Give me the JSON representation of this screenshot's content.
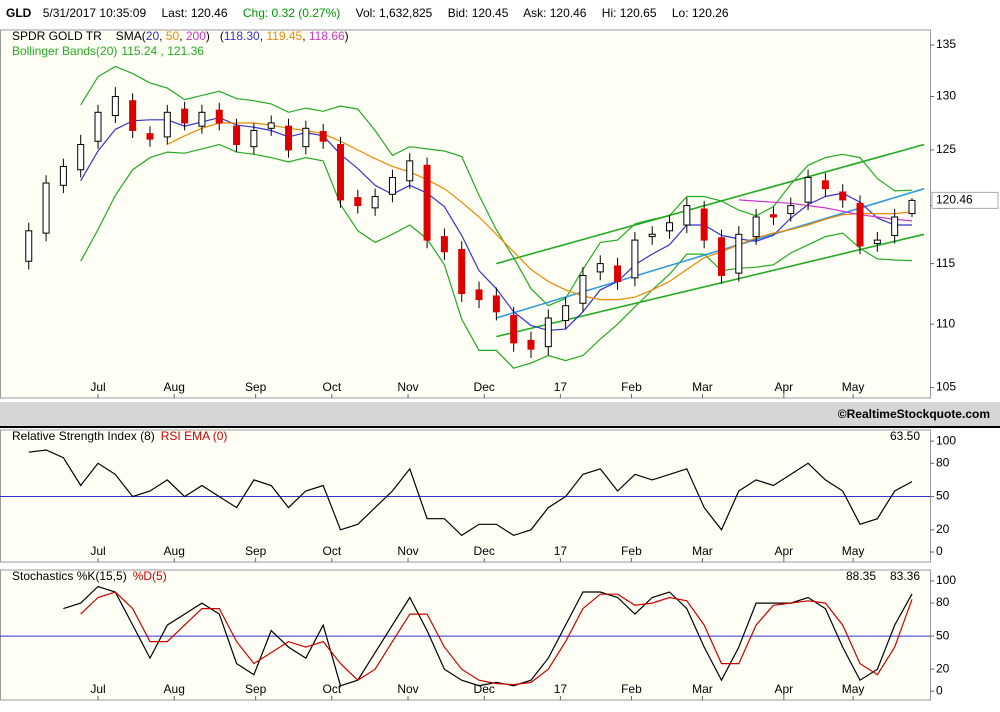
{
  "header": {
    "symbol": "GLD",
    "datetime": "5/31/2017 10:35:09",
    "last": "Last: 120.46",
    "change": "Chg: 0.32 (0.27%)",
    "volume": "Vol: 1,632,825",
    "bid": "Bid: 120.45",
    "ask": "Ask: 120.46",
    "high": "Hi: 120.65",
    "low": "Lo: 120.26"
  },
  "chart_data": [
    {
      "type": "candlestick",
      "name": "SPDR GOLD TR",
      "log": true,
      "ylim": [
        104.2,
        136.5
      ],
      "yticks": [
        105,
        110,
        115,
        120,
        125,
        130,
        135
      ],
      "xlim": [
        -1.66,
        52.04
      ],
      "xticks": [
        {
          "value": 4,
          "label": "Jul"
        },
        {
          "value": 8.4,
          "label": "Aug"
        },
        {
          "value": 13.1,
          "label": "Sep"
        },
        {
          "value": 17.5,
          "label": "Oct"
        },
        {
          "value": 21.9,
          "label": "Nov"
        },
        {
          "value": 26.3,
          "label": "Dec"
        },
        {
          "value": 30.7,
          "label": "17"
        },
        {
          "value": 34.8,
          "label": "Feb"
        },
        {
          "value": 38.9,
          "label": "Mar"
        },
        {
          "value": 43.6,
          "label": "Apr"
        },
        {
          "value": 47.6,
          "label": "May"
        }
      ],
      "up_color": "#ffffff",
      "down_color": "#dd0000",
      "open": [
        115.2,
        117.6,
        121.8,
        123.2,
        125.8,
        128.2,
        129.6,
        126.5,
        126.2,
        128.8,
        127.2,
        128.7,
        127.2,
        125.3,
        127.0,
        127.2,
        125.3,
        126.7,
        125.5,
        120.7,
        119.8,
        121.0,
        122.2,
        123.6,
        117.3,
        116.2,
        112.8,
        112.3,
        110.7,
        108.7,
        108.2,
        110.3,
        111.7,
        114.3,
        114.8,
        113.8,
        117.3,
        117.8,
        118.3,
        119.7,
        117.2,
        114.2,
        117.3,
        119.2,
        119.3,
        120.3,
        122.2,
        121.2,
        120.2,
        116.7,
        117.4,
        119.3
      ],
      "high": [
        118.5,
        122.7,
        124.2,
        126.4,
        129.2,
        130.9,
        130.3,
        127.2,
        129.2,
        129.5,
        129.2,
        129.4,
        127.9,
        127.5,
        128.2,
        127.9,
        127.7,
        127.4,
        126.2,
        121.4,
        121.5,
        123.2,
        124.7,
        124.3,
        118,
        116.9,
        113.5,
        113,
        111.4,
        109.4,
        111.2,
        112.2,
        114.7,
        115.7,
        115.5,
        117.7,
        118.2,
        119.2,
        120.7,
        120.4,
        117.9,
        118.2,
        119.7,
        119.9,
        120.7,
        123.2,
        122.9,
        121.9,
        120.9,
        117.7,
        119.7,
        120.65
      ],
      "low": [
        114.5,
        116.9,
        121.1,
        122.5,
        125.1,
        127.5,
        126.1,
        125.3,
        125.5,
        126.8,
        126.5,
        126.8,
        124.8,
        124.6,
        126.3,
        124.3,
        124.6,
        125.1,
        119.8,
        119.3,
        119.1,
        120.3,
        121.5,
        116.3,
        115.3,
        111.8,
        111.3,
        110.3,
        107.8,
        107.3,
        107.5,
        109.6,
        111,
        113.6,
        112.8,
        113.1,
        116.6,
        117.1,
        117.6,
        116.3,
        113.3,
        113.5,
        116.6,
        118.3,
        118.6,
        119.6,
        120.8,
        119.8,
        115.8,
        116,
        116.7,
        119.0
      ],
      "close": [
        117.8,
        122.0,
        123.5,
        125.5,
        128.5,
        130.0,
        126.8,
        126.0,
        128.5,
        127.5,
        128.5,
        127.5,
        125.5,
        126.8,
        127.5,
        125.0,
        127.0,
        125.8,
        120.5,
        120.0,
        120.8,
        122.5,
        124.0,
        117.0,
        116.0,
        112.5,
        112.0,
        111.0,
        108.5,
        108.0,
        110.5,
        111.5,
        114.0,
        115.0,
        113.5,
        117.0,
        117.5,
        118.5,
        120.0,
        117.0,
        114.0,
        117.5,
        119.0,
        119.0,
        120.0,
        122.5,
        121.5,
        120.5,
        116.5,
        117.0,
        119.0,
        120.46
      ],
      "last_price": 120.46,
      "sma_legend": {
        "open": "SMA(",
        "sep": ", ",
        "close": ")",
        "values_open": "(",
        "values_close": ")"
      },
      "overlays": [
        {
          "name": "20",
          "color": "#3333cc",
          "value_label": "118.30",
          "values": [
            null,
            null,
            null,
            122.2,
            124.9,
            126.9,
            127.7,
            127.8,
            127.8,
            127.2,
            127.6,
            128,
            127.3,
            127.1,
            126.8,
            126.2,
            126.6,
            126.3,
            124.6,
            123.3,
            121.8,
            121.0,
            121.8,
            121.1,
            119.9,
            117.4,
            114.4,
            112.9,
            111,
            109.9,
            109.5,
            109.6,
            111,
            112.8,
            113.5,
            114.9,
            115.8,
            116.6,
            118.3,
            118.3,
            117.4,
            117.1,
            116.9,
            117.4,
            118.9,
            120.1,
            120.8,
            121.1,
            120.3,
            118.9,
            118.3,
            118.3
          ]
        },
        {
          "name": "50",
          "color": "#ee8800",
          "value_label": "119.45",
          "values": [
            null,
            null,
            null,
            null,
            null,
            null,
            null,
            null,
            125.5,
            126.3,
            127,
            127.5,
            127.5,
            127.5,
            127.3,
            127,
            126.8,
            126.5,
            125.8,
            125,
            124.2,
            123.5,
            123,
            122.3,
            121.5,
            120.3,
            119,
            117.5,
            116,
            114.5,
            113.5,
            112.8,
            112.3,
            112,
            112,
            112.2,
            112.8,
            113.5,
            114.5,
            115.5,
            116,
            116.6,
            117.2,
            117.6,
            117.9,
            118.3,
            118.8,
            119.2,
            119.3,
            119.3,
            119.3,
            119.45
          ]
        },
        {
          "name": "200",
          "color": "#cc33cc",
          "value_label": "118.66",
          "values": [
            null,
            null,
            null,
            null,
            null,
            null,
            null,
            null,
            null,
            null,
            null,
            null,
            null,
            null,
            null,
            null,
            null,
            null,
            null,
            null,
            null,
            null,
            null,
            null,
            null,
            null,
            null,
            null,
            null,
            null,
            null,
            null,
            null,
            null,
            null,
            null,
            null,
            null,
            null,
            null,
            null,
            120.5,
            120.4,
            120.3,
            120.2,
            120.0,
            119.8,
            119.5,
            119.2,
            119.0,
            118.8,
            118.66
          ]
        }
      ],
      "bollinger": {
        "name": "Bollinger Bands(20)",
        "color": "#22aa22",
        "lower_label": "115.24",
        "sep": " , ",
        "upper_label": "121.36",
        "upper": [
          null,
          null,
          null,
          129.2,
          131.9,
          132.9,
          132.2,
          131.3,
          130.8,
          129.7,
          130.1,
          130.5,
          129.8,
          129.6,
          129.3,
          128.5,
          128.9,
          128.6,
          129.1,
          128.8,
          126.8,
          124.5,
          125.3,
          125.1,
          124.9,
          124.4,
          120.9,
          117.9,
          115.5,
          112.9,
          111.5,
          112.1,
          114.5,
          116.8,
          117,
          118.4,
          118.8,
          119.1,
          120.8,
          120.8,
          120.4,
          119.6,
          119.1,
          119.9,
          121.9,
          123.6,
          124.3,
          124.6,
          124.3,
          122.4,
          121.3,
          121.36
        ],
        "lower": [
          null,
          null,
          null,
          115.2,
          117.9,
          120.9,
          123.2,
          124.3,
          124.8,
          124.7,
          125.1,
          125.5,
          124.8,
          124.6,
          124.3,
          123.9,
          124.3,
          124.0,
          120.1,
          117.8,
          116.8,
          117.5,
          118.3,
          117.1,
          114.9,
          110.4,
          107.9,
          107.9,
          106.5,
          106.9,
          107.5,
          107.1,
          107.5,
          108.8,
          110,
          111.4,
          112.8,
          114.1,
          115.8,
          115.8,
          114.4,
          114.6,
          114.7,
          114.9,
          115.9,
          116.6,
          117.3,
          117.6,
          116.3,
          115.4,
          115.3,
          115.24
        ]
      },
      "trendlines": [
        {
          "color": "#22aa22",
          "x": [
            27,
            51.7
          ],
          "values": [
            115,
            125.5
          ]
        },
        {
          "color": "#22aa22",
          "x": [
            27,
            51.7
          ],
          "values": [
            109,
            117.5
          ]
        },
        {
          "color": "#3399dd",
          "x": [
            27,
            51.7
          ],
          "values": [
            110.5,
            121.5
          ]
        }
      ],
      "watermark": "©RealtimeStockquote.com"
    },
    {
      "type": "line",
      "title": "Relative Strength Index (8)",
      "title2": "RSI EMA (0)",
      "title2_color": "#cc0000",
      "ylim": [
        -9,
        110
      ],
      "yticks": [
        0,
        20,
        50,
        80,
        100
      ],
      "ref_line": {
        "value": 50,
        "color": "#3333cc"
      },
      "series": [
        {
          "color": "#000000",
          "value_label": "63.50",
          "values": [
            90,
            92,
            85,
            60,
            80,
            70,
            50,
            55,
            65,
            50,
            60,
            50,
            40,
            65,
            60,
            40,
            55,
            60,
            20,
            25,
            40,
            55,
            75,
            30,
            30,
            15,
            25,
            25,
            15,
            20,
            40,
            50,
            70,
            75,
            55,
            70,
            65,
            70,
            75,
            40,
            20,
            55,
            65,
            60,
            70,
            80,
            65,
            55,
            25,
            30,
            55,
            63.5
          ]
        }
      ]
    },
    {
      "type": "line",
      "title": "Stochastics %K(15,5)",
      "title2": "%D(5)",
      "title2_color": "#cc0000",
      "ylim": [
        -8,
        110
      ],
      "yticks": [
        0,
        20,
        50,
        80,
        100
      ],
      "ref_line": {
        "value": 50,
        "color": "#3333cc"
      },
      "series": [
        {
          "color": "#000000",
          "value_label": "88.35",
          "values": [
            null,
            null,
            75,
            80,
            95,
            90,
            60,
            30,
            60,
            70,
            80,
            70,
            25,
            15,
            55,
            40,
            30,
            60,
            5,
            10,
            35,
            60,
            85,
            55,
            20,
            10,
            5,
            8,
            5,
            10,
            30,
            60,
            90,
            90,
            85,
            70,
            85,
            90,
            75,
            40,
            10,
            40,
            80,
            80,
            80,
            85,
            75,
            40,
            10,
            20,
            60,
            88.35
          ]
        },
        {
          "color": "#cc0000",
          "value_label": "83.36",
          "values": [
            null,
            null,
            null,
            70,
            85,
            90,
            75,
            45,
            45,
            60,
            75,
            75,
            45,
            25,
            35,
            45,
            40,
            45,
            25,
            10,
            20,
            45,
            70,
            70,
            40,
            20,
            10,
            7,
            6,
            8,
            20,
            45,
            75,
            88,
            88,
            78,
            80,
            85,
            82,
            60,
            25,
            25,
            60,
            78,
            80,
            82,
            80,
            60,
            25,
            15,
            40,
            83.36
          ]
        }
      ]
    }
  ]
}
